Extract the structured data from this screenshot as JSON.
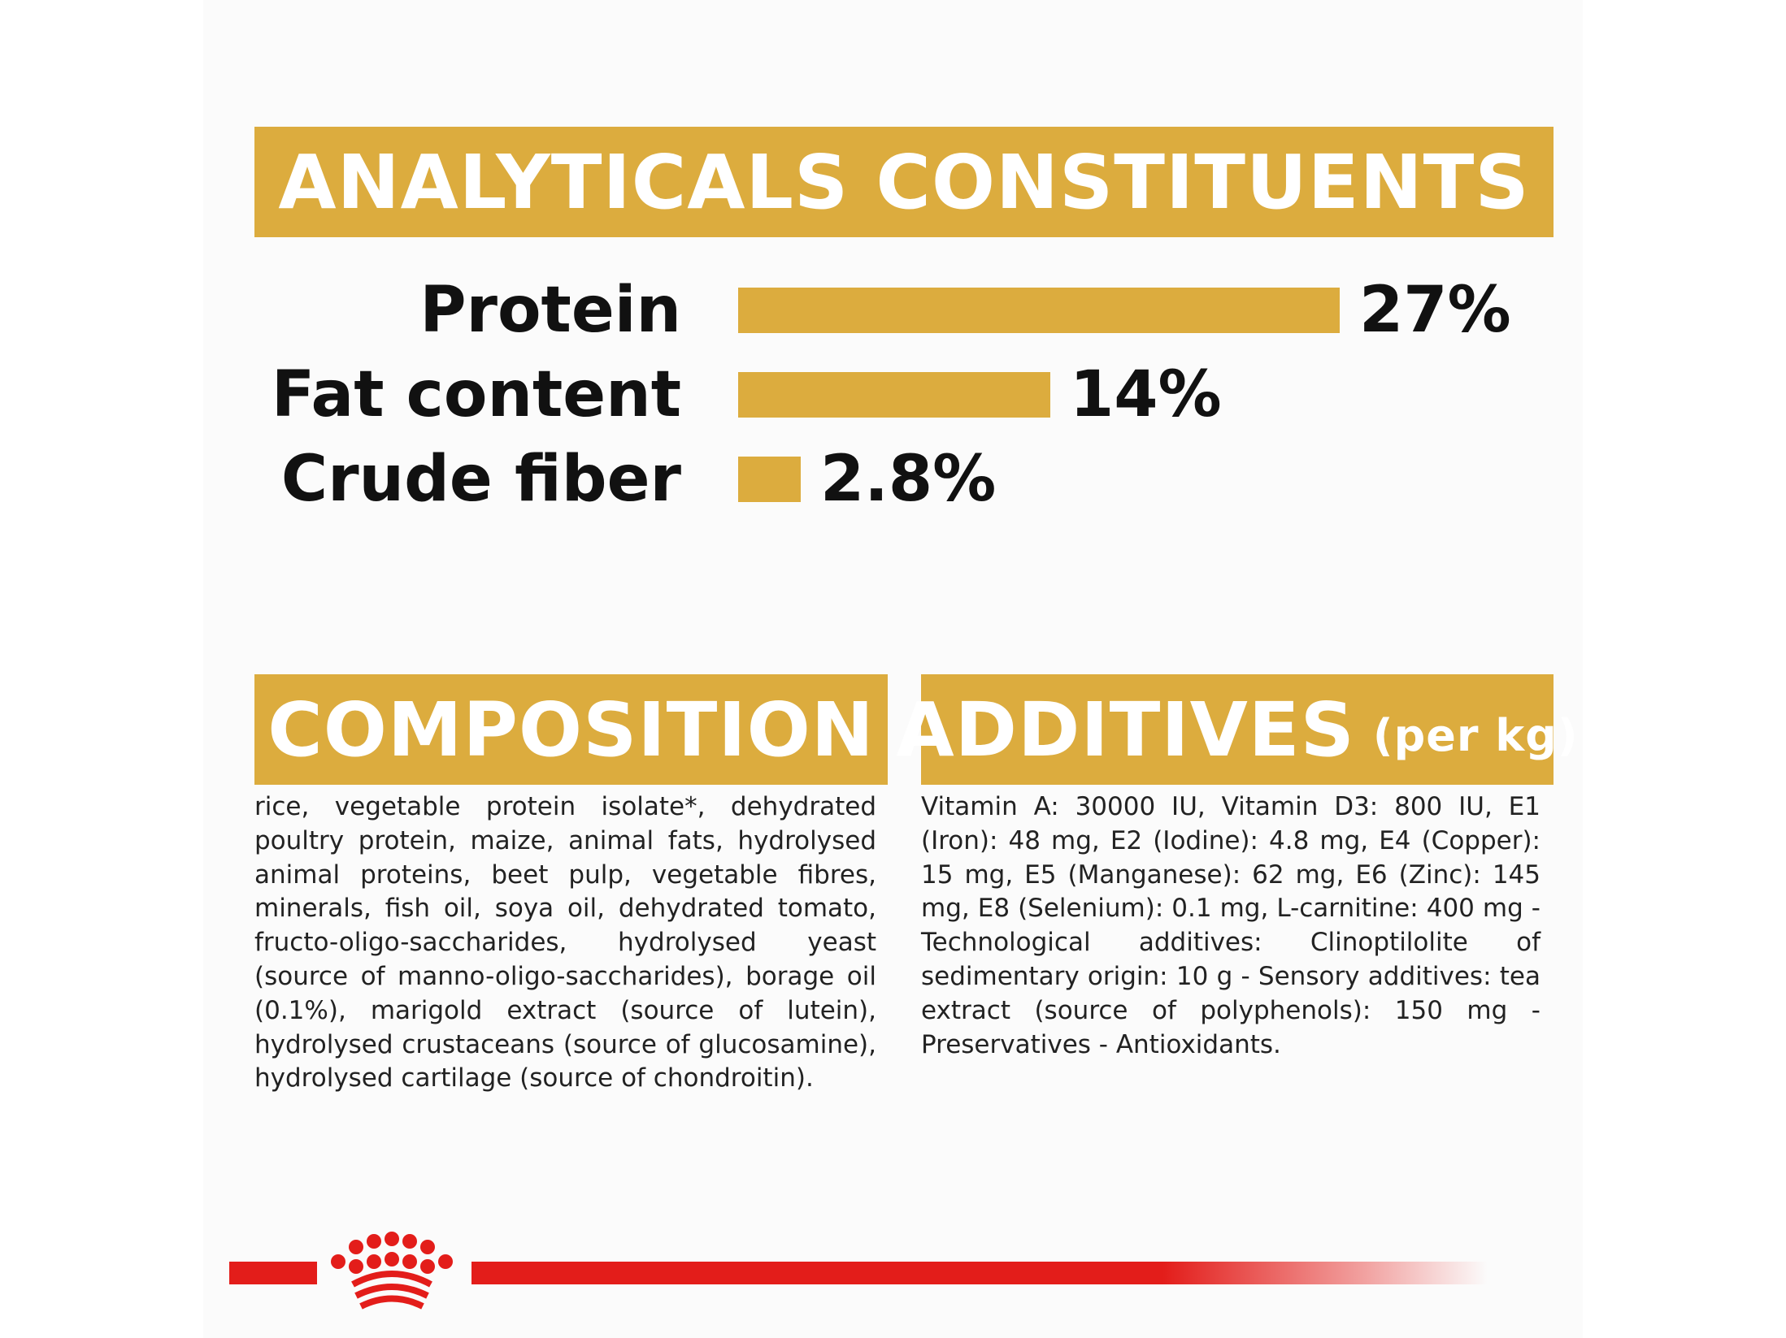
{
  "analytical": {
    "title": "ANALYTICALS CONSTITUENTS",
    "items": [
      {
        "label": "Protein",
        "value_text": "27%",
        "value": 27
      },
      {
        "label": "Fat content",
        "value_text": "14%",
        "value": 14
      },
      {
        "label": "Crude fiber",
        "value_text": "2.8%",
        "value": 2.8
      }
    ]
  },
  "composition": {
    "title": "COMPOSITION",
    "text": "rice, vegetable protein isolate*, dehydrated poultry protein, maize, animal fats, hydrolysed animal proteins, beet pulp, vegetable fibres, minerals, fish oil, soya oil, dehydrated tomato, fructo-oligo-saccharides, hydrolysed yeast (source of manno-oligo-saccharides), borage oil (0.1%), marigold extract (source of lutein), hydrolysed crustaceans (source of glucosamine), hydrolysed cartilage (source of chondroitin)."
  },
  "additives": {
    "title": "ADDITIVES",
    "title_suffix": "(per kg)",
    "text": "Vitamin A: 30000 IU, Vitamin D3: 800 IU, E1 (Iron): 48 mg, E2 (Iodine): 4.8 mg, E4 (Copper): 15 mg, E5 (Manganese): 62 mg, E6 (Zinc): 145 mg, E8 (Selenium): 0.1 mg, L-carnitine: 400 mg - Technological additives: Clinoptilolite of sedimentary origin: 10 g - Sensory additives: tea extract (source of polyphenols): 150 mg - Preservatives - Antioxidants."
  },
  "footer": {
    "logo_icon": "crown-icon"
  },
  "colors": {
    "accent": "#dcac3e",
    "brand_red": "#e31d1a",
    "text": "#111111"
  }
}
